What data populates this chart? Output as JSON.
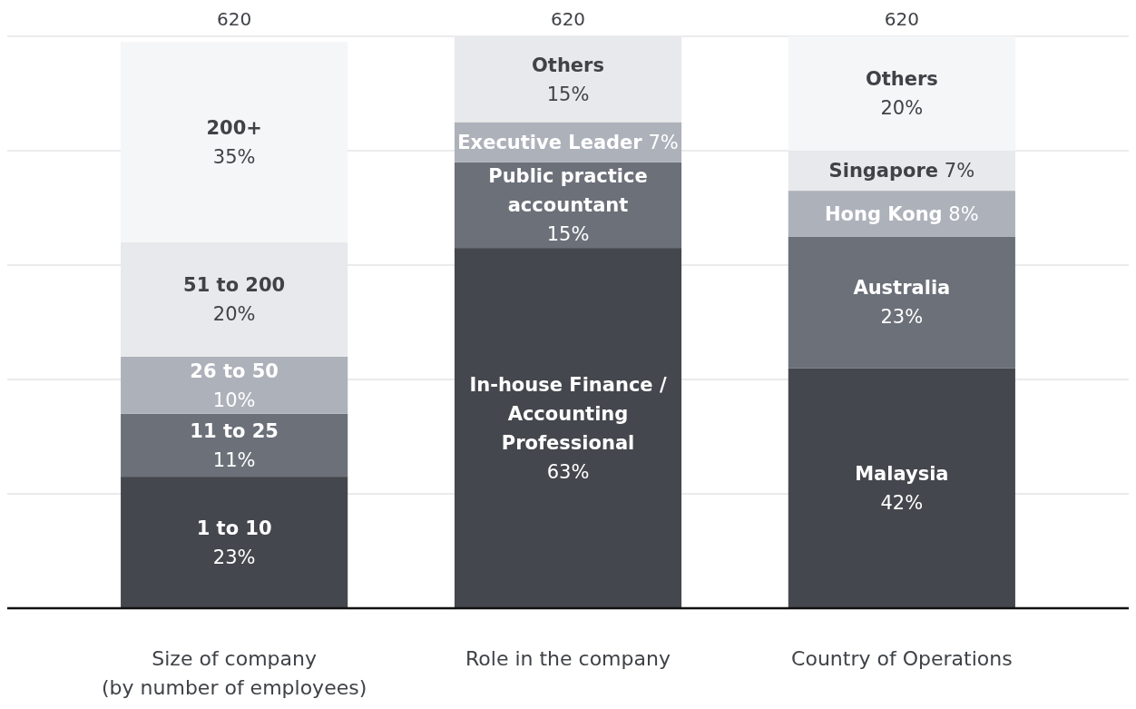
{
  "chart_data": {
    "type": "bar",
    "stacked": true,
    "categories": [
      "Size of company (by number of employees)",
      "Role in the company",
      "Country of Operations"
    ],
    "series": [
      {
        "name": "1 to 10",
        "color": "#44474d",
        "values": [
          23,
          null,
          null
        ],
        "value_labels": [
          "23%",
          null,
          null
        ]
      },
      {
        "name": "11 to 25",
        "color": "#6b7079",
        "values": [
          11,
          null,
          null
        ],
        "value_labels": [
          "11%",
          null,
          null
        ]
      },
      {
        "name": "26 to 50",
        "color": "#adb1ba",
        "values": [
          10,
          null,
          null
        ],
        "value_labels": [
          "10%",
          null,
          null
        ]
      },
      {
        "name": "51 to 200",
        "color": "#e8e9ec",
        "values": [
          20,
          null,
          null
        ],
        "value_labels": [
          "20%",
          null,
          null
        ]
      },
      {
        "name": "200+",
        "color": "#f5f6f7",
        "values": [
          35,
          null,
          null
        ],
        "value_labels": [
          "35%",
          null,
          null
        ]
      },
      {
        "name": "In-house Finance / Accounting Professional",
        "color": "#44474d",
        "values": [
          null,
          63,
          null
        ],
        "value_labels": [
          null,
          "63%",
          null
        ]
      },
      {
        "name": "Public practice accountant",
        "color": "#6b7079",
        "values": [
          null,
          15,
          null
        ],
        "value_labels": [
          null,
          "15%",
          null
        ]
      },
      {
        "name": "Executive Leader",
        "color": "#adb1ba",
        "values": [
          null,
          7,
          null
        ],
        "value_labels": [
          null,
          "7%",
          null
        ]
      },
      {
        "name": "Others",
        "color": "#e8e9ec",
        "values": [
          null,
          15,
          null
        ],
        "value_labels": [
          null,
          "15%",
          null
        ]
      },
      {
        "name": "Malaysia",
        "color": "#44474d",
        "values": [
          null,
          null,
          42
        ],
        "value_labels": [
          null,
          null,
          "42%"
        ]
      },
      {
        "name": "Australia",
        "color": "#6b7079",
        "values": [
          null,
          null,
          23
        ],
        "value_labels": [
          null,
          null,
          "23%"
        ]
      },
      {
        "name": "Hong Kong",
        "color": "#adb1ba",
        "values": [
          null,
          null,
          8
        ],
        "value_labels": [
          null,
          null,
          "8%"
        ]
      },
      {
        "name": "Singapore",
        "color": "#e8e9ec",
        "values": [
          null,
          null,
          7
        ],
        "value_labels": [
          null,
          null,
          "7%"
        ]
      },
      {
        "name": "Others",
        "color": "#f5f6f7",
        "values": [
          null,
          null,
          20
        ],
        "value_labels": [
          null,
          null,
          "20%"
        ]
      }
    ],
    "annotations": [
      "620",
      "620",
      "620"
    ],
    "ylim": [
      0,
      100
    ],
    "yticks": [
      {
        "value": 0,
        "label": null
      },
      {
        "value": 20,
        "label": null
      },
      {
        "value": 40,
        "label": null
      },
      {
        "value": 60,
        "label": null
      },
      {
        "value": 80,
        "label": null
      },
      {
        "value": 100,
        "label": null
      }
    ],
    "grid": "y",
    "tick_labels": "x"
  }
}
